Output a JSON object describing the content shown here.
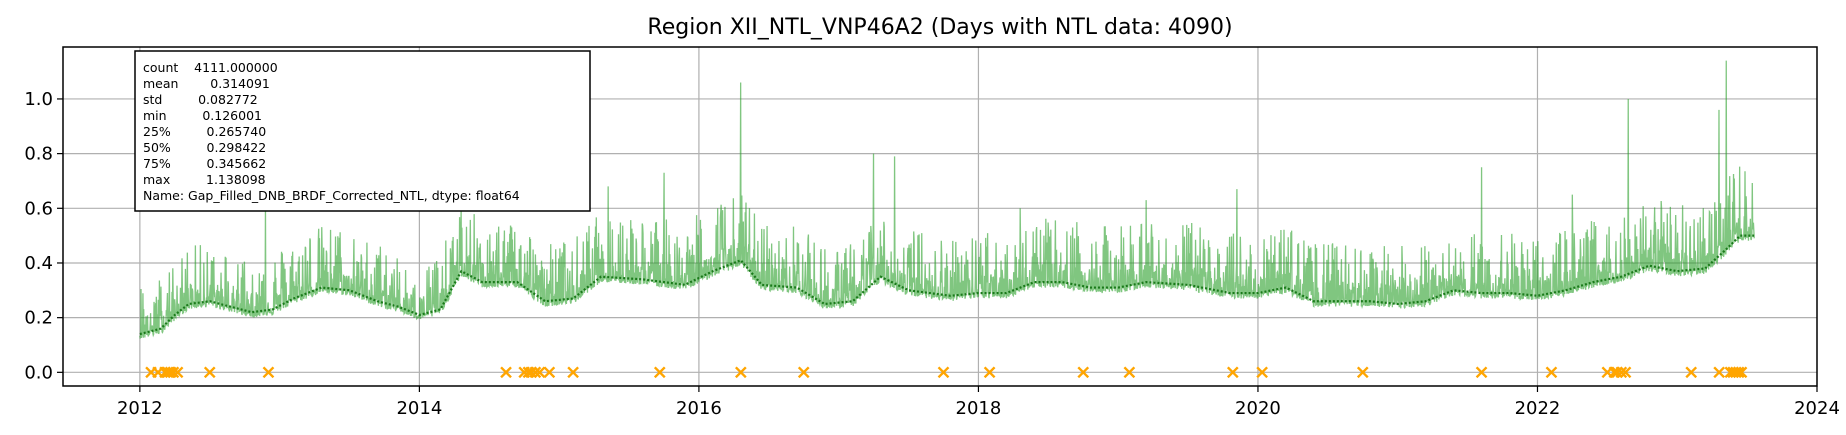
{
  "chart_data": {
    "type": "line",
    "title": "Region XII_NTL_VNP46A2 (Days with NTL data: 4090)",
    "xlabel": "",
    "ylabel": "",
    "xlim": [
      2011.45,
      2024.0
    ],
    "ylim": [
      -0.05,
      1.19
    ],
    "x_ticks": [
      2012,
      2014,
      2016,
      2018,
      2020,
      2022,
      2024
    ],
    "y_ticks": [
      0.0,
      0.2,
      0.4,
      0.6,
      0.8,
      1.0
    ],
    "grid": true,
    "series_color": "#2ca02c",
    "marker_color": "#ffa500",
    "stats_box": {
      "lines": [
        "count    4111.000000",
        "mean        0.314091",
        "std         0.082772",
        "min         0.126001",
        "25%         0.265740",
        "50%         0.298422",
        "75%         0.345662",
        "max         1.138098",
        "Name: Gap_Filled_DNB_BRDF_Corrected_NTL, dtype: float64"
      ]
    },
    "baseline": [
      {
        "x": 2012.0,
        "y": 0.14
      },
      {
        "x": 2012.15,
        "y": 0.16
      },
      {
        "x": 2012.25,
        "y": 0.21
      },
      {
        "x": 2012.35,
        "y": 0.25
      },
      {
        "x": 2012.5,
        "y": 0.26
      },
      {
        "x": 2012.65,
        "y": 0.24
      },
      {
        "x": 2012.8,
        "y": 0.22
      },
      {
        "x": 2012.95,
        "y": 0.23
      },
      {
        "x": 2013.1,
        "y": 0.27
      },
      {
        "x": 2013.3,
        "y": 0.31
      },
      {
        "x": 2013.5,
        "y": 0.3
      },
      {
        "x": 2013.7,
        "y": 0.26
      },
      {
        "x": 2013.85,
        "y": 0.24
      },
      {
        "x": 2014.0,
        "y": 0.21
      },
      {
        "x": 2014.15,
        "y": 0.23
      },
      {
        "x": 2014.3,
        "y": 0.37
      },
      {
        "x": 2014.45,
        "y": 0.33
      },
      {
        "x": 2014.7,
        "y": 0.33
      },
      {
        "x": 2014.9,
        "y": 0.26
      },
      {
        "x": 2015.1,
        "y": 0.27
      },
      {
        "x": 2015.3,
        "y": 0.35
      },
      {
        "x": 2015.6,
        "y": 0.34
      },
      {
        "x": 2015.9,
        "y": 0.32
      },
      {
        "x": 2016.1,
        "y": 0.37
      },
      {
        "x": 2016.3,
        "y": 0.41
      },
      {
        "x": 2016.45,
        "y": 0.32
      },
      {
        "x": 2016.7,
        "y": 0.31
      },
      {
        "x": 2016.9,
        "y": 0.25
      },
      {
        "x": 2017.1,
        "y": 0.26
      },
      {
        "x": 2017.3,
        "y": 0.35
      },
      {
        "x": 2017.5,
        "y": 0.3
      },
      {
        "x": 2017.8,
        "y": 0.28
      },
      {
        "x": 2018.0,
        "y": 0.29
      },
      {
        "x": 2018.2,
        "y": 0.29
      },
      {
        "x": 2018.4,
        "y": 0.33
      },
      {
        "x": 2018.6,
        "y": 0.33
      },
      {
        "x": 2018.8,
        "y": 0.31
      },
      {
        "x": 2019.0,
        "y": 0.31
      },
      {
        "x": 2019.2,
        "y": 0.33
      },
      {
        "x": 2019.5,
        "y": 0.32
      },
      {
        "x": 2019.8,
        "y": 0.29
      },
      {
        "x": 2020.0,
        "y": 0.29
      },
      {
        "x": 2020.2,
        "y": 0.31
      },
      {
        "x": 2020.4,
        "y": 0.26
      },
      {
        "x": 2020.6,
        "y": 0.26
      },
      {
        "x": 2020.8,
        "y": 0.26
      },
      {
        "x": 2021.0,
        "y": 0.25
      },
      {
        "x": 2021.2,
        "y": 0.26
      },
      {
        "x": 2021.4,
        "y": 0.3
      },
      {
        "x": 2021.6,
        "y": 0.29
      },
      {
        "x": 2021.8,
        "y": 0.29
      },
      {
        "x": 2022.0,
        "y": 0.28
      },
      {
        "x": 2022.2,
        "y": 0.3
      },
      {
        "x": 2022.4,
        "y": 0.33
      },
      {
        "x": 2022.6,
        "y": 0.35
      },
      {
        "x": 2022.8,
        "y": 0.39
      },
      {
        "x": 2023.0,
        "y": 0.37
      },
      {
        "x": 2023.2,
        "y": 0.38
      },
      {
        "x": 2023.35,
        "y": 0.45
      },
      {
        "x": 2023.45,
        "y": 0.5
      },
      {
        "x": 2023.55,
        "y": 0.5
      }
    ],
    "peaks": [
      {
        "x": 2012.9,
        "y": 0.61
      },
      {
        "x": 2014.3,
        "y": 0.6
      },
      {
        "x": 2015.35,
        "y": 0.68
      },
      {
        "x": 2015.75,
        "y": 0.73
      },
      {
        "x": 2016.3,
        "y": 1.06
      },
      {
        "x": 2017.25,
        "y": 0.8
      },
      {
        "x": 2017.4,
        "y": 0.79
      },
      {
        "x": 2018.3,
        "y": 0.6
      },
      {
        "x": 2019.2,
        "y": 0.63
      },
      {
        "x": 2019.85,
        "y": 0.67
      },
      {
        "x": 2021.6,
        "y": 0.75
      },
      {
        "x": 2022.25,
        "y": 0.65
      },
      {
        "x": 2022.65,
        "y": 1.0
      },
      {
        "x": 2023.3,
        "y": 0.96
      },
      {
        "x": 2023.35,
        "y": 1.14
      }
    ],
    "missing_markers_x": [
      2012.08,
      2012.13,
      2012.18,
      2012.2,
      2012.22,
      2012.24,
      2012.27,
      2012.5,
      2012.92,
      2014.62,
      2014.75,
      2014.78,
      2014.8,
      2014.83,
      2014.86,
      2014.93,
      2015.1,
      2015.72,
      2016.3,
      2016.75,
      2017.75,
      2018.08,
      2018.75,
      2019.08,
      2019.82,
      2020.03,
      2020.75,
      2021.6,
      2022.1,
      2022.5,
      2022.55,
      2022.57,
      2022.6,
      2022.63,
      2023.1,
      2023.3,
      2023.38,
      2023.4,
      2023.42,
      2023.44,
      2023.46
    ]
  }
}
